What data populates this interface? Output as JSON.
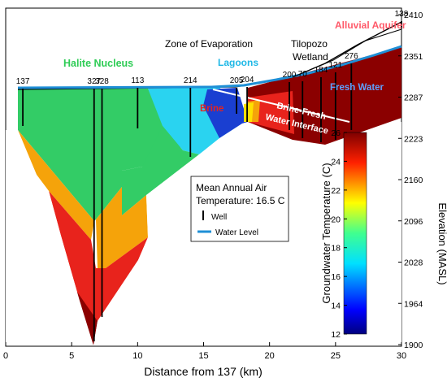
{
  "chart_data": {
    "type": "heatmap",
    "xlabel": "Distance from 137 (km)",
    "x_ticks": [
      "0",
      "5",
      "10",
      "15",
      "20",
      "25",
      "30"
    ],
    "xlim": [
      0,
      30
    ],
    "right_axis": {
      "label": "Elevation  (MASL)",
      "ticks": [
        "1900",
        "1964",
        "2028",
        "2096",
        "2160",
        "2223",
        "2287",
        "2351",
        "2410"
      ],
      "range": [
        1900,
        2410
      ]
    },
    "colorbar": {
      "label": "Groundwater Temperature (C)",
      "ticks": [
        "12",
        "14",
        "16",
        "18",
        "20",
        "22",
        "24",
        "26"
      ],
      "range": [
        12,
        26
      ]
    },
    "zone_labels": {
      "halite": "Halite Nucleus",
      "evaporation": "Zone of Evaporation",
      "lagoons": "Lagoons",
      "tilopozo": "Tilopozo",
      "wetland": "Wetland",
      "alluvial": "Alluvial Aquifer",
      "brine": "Brine",
      "fresh": "Fresh Water",
      "interface_1": "Brine-Fresh",
      "interface_2": "Water Interface"
    },
    "well_labels": [
      "137",
      "327",
      "328",
      "113",
      "214",
      "205",
      "204",
      "200",
      "70",
      "184",
      "121",
      "276",
      "138"
    ],
    "wells": [
      {
        "name": "137",
        "x_km": 1.3
      },
      {
        "name": "327",
        "x_km": 6.7
      },
      {
        "name": "328",
        "x_km": 7.3
      },
      {
        "name": "113",
        "x_km": 10.0
      },
      {
        "name": "214",
        "x_km": 14.0
      },
      {
        "name": "205",
        "x_km": 17.5
      },
      {
        "name": "204",
        "x_km": 18.3
      },
      {
        "name": "200",
        "x_km": 21.5
      },
      {
        "name": "70",
        "x_km": 22.5
      },
      {
        "name": "184",
        "x_km": 23.9
      },
      {
        "name": "121",
        "x_km": 25.0
      },
      {
        "name": "276",
        "x_km": 26.2
      },
      {
        "name": "138",
        "x_km": 30.0
      }
    ],
    "legend": {
      "line1": "Mean Annual Air",
      "line2": "Temperature: 16.5 C",
      "well": "Well",
      "water_level": "Water Level"
    }
  },
  "colors": {
    "halite_green": "#33cc66",
    "orange": "#f5a30a",
    "red": "#e8231c",
    "dark_red": "#8b0000",
    "cyan": "#2ad3f0",
    "blue": "#1a3fd1",
    "water_level": "#1e8fd6",
    "lagoons_label": "#1fb8e6",
    "halite_label": "#2ecc55",
    "brine_label": "#e8231c",
    "fresh_label": "#5ea0ff",
    "alluvial_label": "#ff5a6a"
  }
}
